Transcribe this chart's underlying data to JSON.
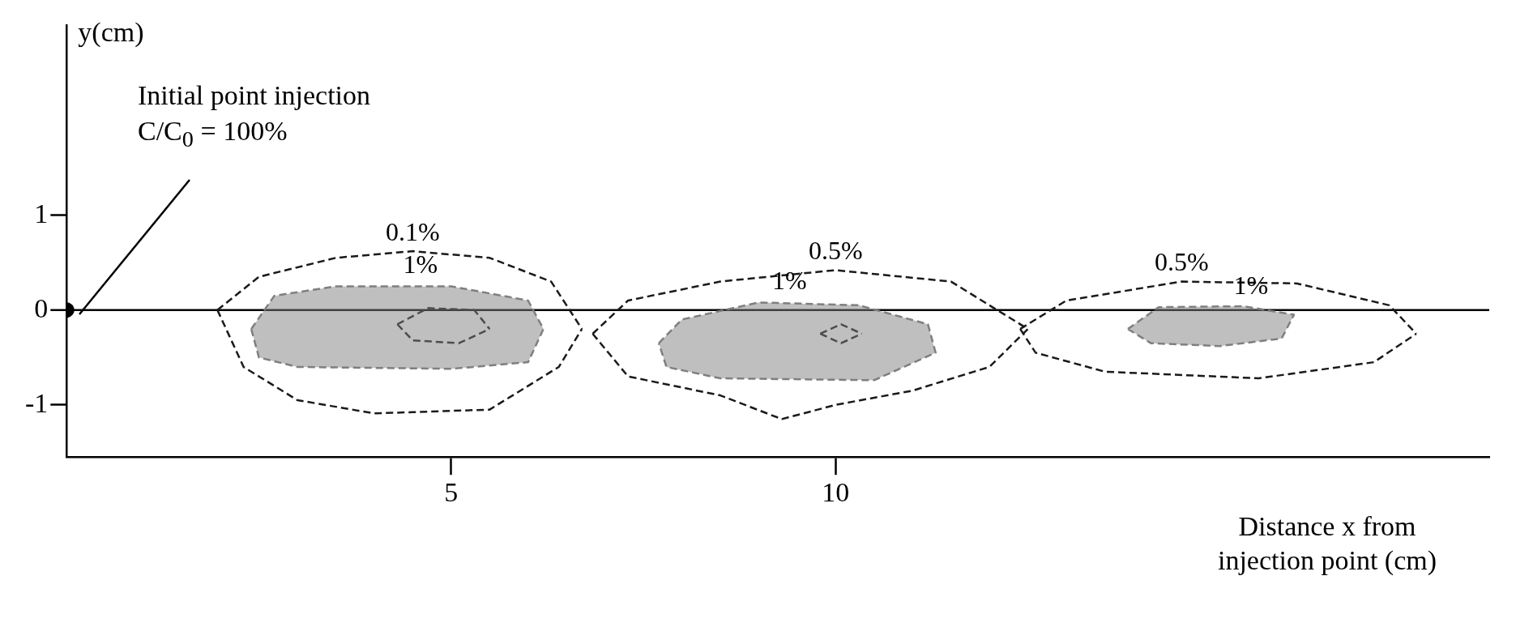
{
  "chart_data": {
    "type": "line",
    "xlabel": "Distance x from injection point (cm)",
    "ylabel": "y(cm)",
    "xlim": [
      0,
      18.5
    ],
    "ylim": [
      -1.55,
      3
    ],
    "xticks": [
      5,
      10
    ],
    "yticks": [
      -1,
      0,
      1
    ],
    "grid": false,
    "legend": false,
    "line_style": "dashed",
    "ref_lines": [
      {
        "axis": "y",
        "value": 0,
        "line_style": "solid",
        "color": "#000000"
      }
    ],
    "series": [
      {
        "type": "scatter",
        "color": "#000000",
        "marker": "circle",
        "x": [
          0
        ],
        "values": [
          0
        ]
      },
      {
        "color": "#1a1a1a",
        "x": [
          1.96,
          2.5,
          3.5,
          4.5,
          5.5,
          6.3,
          6.7
        ],
        "values": [
          0,
          0.35,
          0.55,
          0.62,
          0.55,
          0.3,
          -0.2
        ]
      },
      {
        "color": "#1a1a1a",
        "x": [
          1.96,
          2.3,
          3,
          4,
          5.5,
          6.4,
          6.7
        ],
        "values": [
          0,
          -0.6,
          -0.95,
          -1.09,
          -1.05,
          -0.6,
          -0.2
        ]
      },
      {
        "type": "area",
        "color": "#7f7f7f",
        "x": [
          2.4,
          2.7,
          3.5,
          5,
          6,
          6.2,
          6,
          5,
          3,
          2.5,
          2.4
        ],
        "values": [
          -0.2,
          0.15,
          0.25,
          0.25,
          0.1,
          -0.2,
          -0.55,
          -0.62,
          -0.6,
          -0.5,
          -0.2
        ]
      },
      {
        "color": "#1a1a1a",
        "x": [
          4.3,
          4.7,
          5.3,
          5.5
        ],
        "values": [
          -0.15,
          0.02,
          0,
          -0.2
        ]
      },
      {
        "color": "#1a1a1a",
        "x": [
          4.3,
          4.5,
          5.1,
          5.5
        ],
        "values": [
          -0.15,
          -0.32,
          -0.35,
          -0.2
        ]
      },
      {
        "color": "#1a1a1a",
        "x": [
          6.84,
          7.3,
          8.5,
          10,
          11.5,
          12.5
        ],
        "values": [
          -0.25,
          0.1,
          0.3,
          0.42,
          0.3,
          -0.2
        ]
      },
      {
        "color": "#1a1a1a",
        "x": [
          6.84,
          7.3,
          8.5,
          9.3,
          10,
          11,
          12,
          12.5
        ],
        "values": [
          -0.25,
          -0.7,
          -0.9,
          -1.15,
          -1,
          -0.85,
          -0.6,
          -0.2
        ]
      },
      {
        "type": "area",
        "color": "#7f7f7f",
        "x": [
          7.7,
          8,
          9,
          10.3,
          11.2,
          11.3,
          10.5,
          8.5,
          7.8,
          7.7
        ],
        "values": [
          -0.35,
          -0.1,
          0.08,
          0.05,
          -0.15,
          -0.45,
          -0.74,
          -0.72,
          -0.6,
          -0.35
        ]
      },
      {
        "color": "#1a1a1a",
        "x": [
          9.8,
          10.07,
          10.34
        ],
        "values": [
          -0.25,
          -0.15,
          -0.25
        ]
      },
      {
        "color": "#1a1a1a",
        "x": [
          9.8,
          10.07,
          10.34
        ],
        "values": [
          -0.25,
          -0.35,
          -0.25
        ]
      },
      {
        "color": "#1a1a1a",
        "x": [
          12.4,
          13,
          14.5,
          16,
          17.2,
          17.55
        ],
        "values": [
          -0.2,
          0.1,
          0.3,
          0.28,
          0.05,
          -0.25
        ]
      },
      {
        "color": "#1a1a1a",
        "x": [
          12.4,
          12.6,
          13.5,
          15.5,
          17,
          17.55
        ],
        "values": [
          -0.2,
          -0.45,
          -0.65,
          -0.72,
          -0.55,
          -0.25
        ]
      },
      {
        "type": "area",
        "color": "#7f7f7f",
        "x": [
          13.8,
          14.2,
          15.3,
          15.96,
          15.8,
          15,
          14.1,
          13.8
        ],
        "values": [
          -0.2,
          0.03,
          0.04,
          -0.05,
          -0.3,
          -0.38,
          -0.35,
          -0.2
        ]
      }
    ],
    "annotations": [
      "Initial point injection\nC/C$_{0}$ = 100%",
      {
        "text": "0.1%",
        "x": 4.5,
        "y": 0.62
      },
      {
        "text": "1%",
        "x": 4.6,
        "y": 0.27
      },
      {
        "text": "0.5%",
        "x": 10,
        "y": 0.42
      },
      {
        "text": "1%",
        "x": 9.4,
        "y": 0.1
      },
      {
        "text": "0.5%",
        "x": 14.5,
        "y": 0.3
      },
      {
        "text": "1%",
        "x": 15.4,
        "y": 0.05
      }
    ]
  }
}
